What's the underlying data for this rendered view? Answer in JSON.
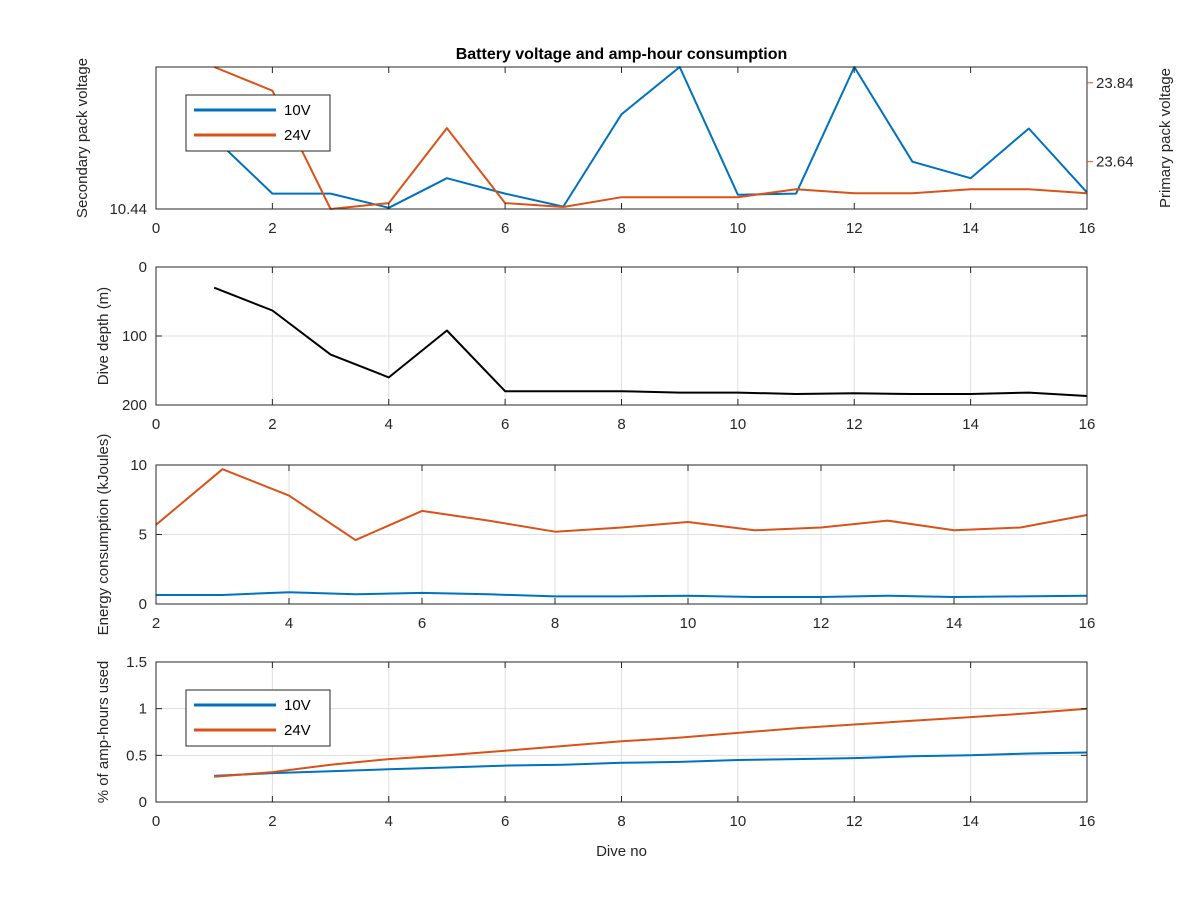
{
  "colors": {
    "ten_v": "#0072BD",
    "twentyfour_v": "#D95319",
    "depth": "#000000",
    "grid": "#DFDFDF",
    "axis": "#262626"
  },
  "chart_data": [
    {
      "type": "line",
      "title": "Battery voltage and amp-hour consumption",
      "xlabel": "",
      "ylabel_left": "Secondary pack voltage",
      "ylabel_right": "Primary pack voltage",
      "xlim": [
        0,
        16
      ],
      "xticks": [
        0,
        2,
        4,
        6,
        8,
        10,
        12,
        14,
        16
      ],
      "ylim_left": [
        10.44,
        10.56
      ],
      "yticks_left": [
        10.44
      ],
      "ylim_right": [
        23.52,
        23.88
      ],
      "yticks_right": [
        23.64,
        23.84
      ],
      "grid": false,
      "legend": {
        "position": "top-left",
        "entries": [
          "10V",
          "24V"
        ]
      },
      "series": [
        {
          "name": "10V",
          "axis": "left",
          "x": [
            1,
            2,
            3,
            4,
            5,
            6,
            7,
            8,
            9,
            10,
            11,
            12,
            13,
            14,
            15,
            16
          ],
          "y": [
            10.5,
            10.453,
            10.453,
            10.441,
            10.466,
            10.453,
            10.442,
            10.52,
            10.56,
            10.452,
            10.453,
            10.56,
            10.48,
            10.466,
            10.508,
            10.454
          ]
        },
        {
          "name": "24V",
          "axis": "right",
          "x": [
            1,
            2,
            3,
            4,
            5,
            6,
            7,
            8,
            9,
            10,
            11,
            12,
            13,
            14,
            15,
            16
          ],
          "y": [
            23.88,
            23.82,
            23.52,
            23.535,
            23.725,
            23.535,
            23.525,
            23.55,
            23.55,
            23.55,
            23.57,
            23.56,
            23.56,
            23.57,
            23.57,
            23.56
          ]
        }
      ]
    },
    {
      "type": "line",
      "title": "",
      "xlabel": "",
      "ylabel": "Dive depth (m)",
      "xlim": [
        0,
        16
      ],
      "xticks": [
        0,
        2,
        4,
        6,
        8,
        10,
        12,
        14,
        16
      ],
      "ylim": [
        0,
        200
      ],
      "yticks": [
        0,
        100,
        200
      ],
      "yreversed": true,
      "grid": true,
      "series": [
        {
          "name": "",
          "x": [
            1,
            2,
            3,
            4,
            5,
            6,
            7,
            8,
            9,
            10,
            11,
            12,
            13,
            14,
            15,
            16
          ],
          "y": [
            30,
            63,
            127,
            160,
            92,
            180,
            180,
            180,
            182,
            182,
            184,
            183,
            184,
            184,
            182,
            187
          ]
        }
      ]
    },
    {
      "type": "line",
      "title": "",
      "xlabel": "",
      "ylabel": "Energy consumption (kJoules)",
      "xlim": [
        2,
        16
      ],
      "xticks": [
        2,
        4,
        6,
        8,
        10,
        12,
        14,
        16
      ],
      "ylim": [
        0,
        10
      ],
      "yticks": [
        0,
        5,
        10
      ],
      "grid": true,
      "series": [
        {
          "name": "24V",
          "x": [
            2,
            3,
            4,
            5,
            6,
            7,
            8,
            9,
            10,
            11,
            12,
            13,
            14,
            15,
            16
          ],
          "y": [
            5.7,
            9.7,
            7.8,
            4.6,
            6.7,
            6.0,
            5.2,
            5.5,
            5.9,
            5.3,
            5.5,
            6.0,
            5.3,
            5.5,
            6.4
          ]
        },
        {
          "name": "10V",
          "x": [
            2,
            3,
            4,
            5,
            6,
            7,
            8,
            9,
            10,
            11,
            12,
            13,
            14,
            15,
            16
          ],
          "y": [
            0.65,
            0.65,
            0.85,
            0.7,
            0.8,
            0.7,
            0.55,
            0.55,
            0.6,
            0.5,
            0.5,
            0.6,
            0.5,
            0.55,
            0.6
          ]
        }
      ]
    },
    {
      "type": "line",
      "title": "",
      "xlabel": "Dive no",
      "ylabel": "% of amp-hours used",
      "xlim": [
        0,
        16
      ],
      "xticks": [
        0,
        2,
        4,
        6,
        8,
        10,
        12,
        14,
        16
      ],
      "ylim": [
        0,
        1.5
      ],
      "yticks": [
        0,
        0.5,
        1,
        1.5
      ],
      "grid": true,
      "legend": {
        "position": "top-left",
        "entries": [
          "10V",
          "24V"
        ]
      },
      "series": [
        {
          "name": "10V",
          "x": [
            1,
            2,
            3,
            4,
            5,
            6,
            7,
            8,
            9,
            10,
            11,
            12,
            13,
            14,
            15,
            16
          ],
          "y": [
            0.28,
            0.31,
            0.33,
            0.35,
            0.37,
            0.39,
            0.4,
            0.42,
            0.43,
            0.45,
            0.46,
            0.47,
            0.49,
            0.5,
            0.52,
            0.53
          ]
        },
        {
          "name": "24V",
          "x": [
            1,
            2,
            3,
            4,
            5,
            6,
            7,
            8,
            9,
            10,
            11,
            12,
            13,
            14,
            15,
            16
          ],
          "y": [
            0.27,
            0.32,
            0.4,
            0.46,
            0.5,
            0.55,
            0.6,
            0.65,
            0.69,
            0.74,
            0.79,
            0.83,
            0.87,
            0.91,
            0.95,
            1.0
          ]
        }
      ]
    }
  ]
}
